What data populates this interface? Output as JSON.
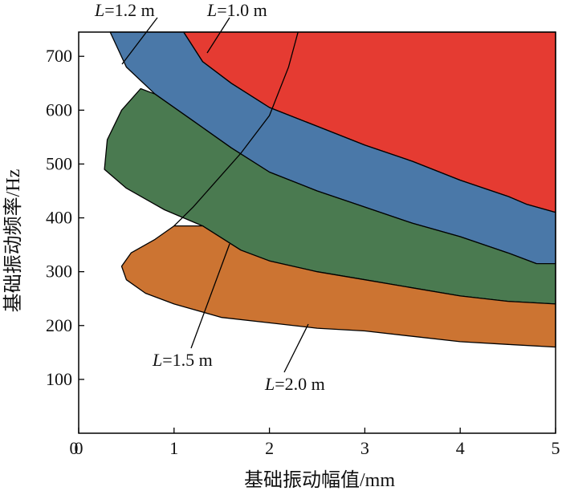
{
  "chart_data": {
    "type": "area",
    "xlabel": "基础振动幅值/mm",
    "ylabel": "基础振动频率/Hz",
    "xlim": [
      0,
      5
    ],
    "ylim": [
      0,
      745
    ],
    "x_ticks": [
      0,
      1,
      2,
      3,
      4,
      5
    ],
    "y_ticks": [
      100,
      200,
      300,
      400,
      500,
      600,
      700
    ],
    "grid": false,
    "colors": {
      "L=1.0 m": "#e53b32",
      "L=1.2 m": "#4a78a8",
      "L=1.5 m": "#4a7a50",
      "L=2.0 m": "#cc7432"
    },
    "regions": [
      {
        "name": "L=1.0 m",
        "label_italic": "L",
        "label_rest": "=1.0 m",
        "boundary": [
          [
            1.1,
            745
          ],
          [
            1.3,
            690
          ],
          [
            1.6,
            650
          ],
          [
            2.0,
            605
          ],
          [
            2.5,
            570
          ],
          [
            3.0,
            535
          ],
          [
            3.5,
            505
          ],
          [
            4.0,
            470
          ],
          [
            4.5,
            440
          ],
          [
            4.7,
            425
          ],
          [
            5.0,
            410
          ],
          [
            5.0,
            745
          ]
        ]
      },
      {
        "name": "L=1.2 m",
        "label_italic": "L",
        "label_rest": "=1.2 m",
        "boundary": [
          [
            0.33,
            745
          ],
          [
            0.5,
            680
          ],
          [
            0.8,
            630
          ],
          [
            1.2,
            580
          ],
          [
            1.6,
            530
          ],
          [
            2.0,
            485
          ],
          [
            2.5,
            450
          ],
          [
            3.0,
            420
          ],
          [
            3.5,
            390
          ],
          [
            4.0,
            365
          ],
          [
            4.5,
            335
          ],
          [
            4.8,
            315
          ],
          [
            5.0,
            315
          ],
          [
            5.0,
            410
          ],
          [
            4.7,
            425
          ],
          [
            4.5,
            440
          ],
          [
            4.0,
            470
          ],
          [
            3.5,
            505
          ],
          [
            3.0,
            535
          ],
          [
            2.5,
            570
          ],
          [
            2.0,
            605
          ],
          [
            1.6,
            650
          ],
          [
            1.3,
            690
          ],
          [
            1.1,
            745
          ]
        ]
      },
      {
        "name": "L=1.5 m",
        "label_italic": "L",
        "label_rest": "=1.5 m",
        "boundary": [
          [
            0.65,
            640
          ],
          [
            0.45,
            600
          ],
          [
            0.3,
            545
          ],
          [
            0.27,
            490
          ],
          [
            0.5,
            455
          ],
          [
            0.9,
            415
          ],
          [
            1.3,
            385
          ],
          [
            1.7,
            340
          ],
          [
            2.0,
            320
          ],
          [
            2.5,
            300
          ],
          [
            3.0,
            285
          ],
          [
            3.5,
            270
          ],
          [
            4.0,
            255
          ],
          [
            4.5,
            245
          ],
          [
            5.0,
            240
          ],
          [
            5.0,
            315
          ],
          [
            4.8,
            315
          ],
          [
            4.5,
            335
          ],
          [
            4.0,
            365
          ],
          [
            3.5,
            390
          ],
          [
            3.0,
            420
          ],
          [
            2.5,
            450
          ],
          [
            2.0,
            485
          ],
          [
            1.6,
            530
          ],
          [
            1.2,
            580
          ],
          [
            0.8,
            630
          ]
        ]
      },
      {
        "name": "L=2.0 m",
        "label_italic": "L",
        "label_rest": "=2.0 m",
        "boundary": [
          [
            0.45,
            310
          ],
          [
            0.55,
            335
          ],
          [
            0.8,
            360
          ],
          [
            1.0,
            385
          ],
          [
            1.3,
            385
          ],
          [
            1.7,
            340
          ],
          [
            2.0,
            320
          ],
          [
            2.5,
            300
          ],
          [
            3.0,
            285
          ],
          [
            3.5,
            270
          ],
          [
            4.0,
            255
          ],
          [
            4.5,
            245
          ],
          [
            5.0,
            240
          ],
          [
            5.0,
            160
          ],
          [
            4.5,
            165
          ],
          [
            4.0,
            170
          ],
          [
            3.5,
            180
          ],
          [
            3.0,
            190
          ],
          [
            2.5,
            195
          ],
          [
            2.0,
            205
          ],
          [
            1.5,
            215
          ],
          [
            1.0,
            240
          ],
          [
            0.7,
            260
          ],
          [
            0.5,
            285
          ]
        ]
      }
    ],
    "overlay_lines": [
      {
        "name": "L=1.5 m boundary",
        "points": [
          [
            2.3,
            745
          ],
          [
            2.2,
            680
          ],
          [
            2.0,
            590
          ],
          [
            1.7,
            520
          ],
          [
            1.4,
            460
          ],
          [
            1.2,
            420
          ],
          [
            1.0,
            385
          ]
        ]
      }
    ]
  }
}
